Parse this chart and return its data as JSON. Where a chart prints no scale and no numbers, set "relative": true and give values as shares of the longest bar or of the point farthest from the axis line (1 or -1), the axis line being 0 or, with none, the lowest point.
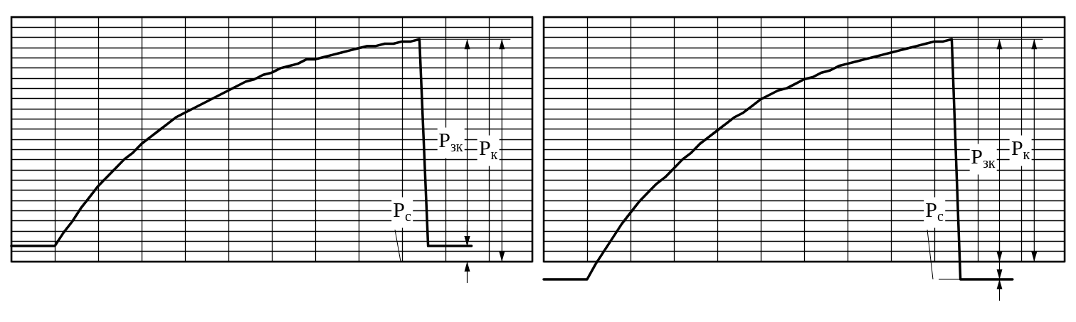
{
  "chart_data": [
    {
      "type": "line",
      "relative": true,
      "grid": true,
      "marker": "none",
      "line_style": "solid",
      "categories": [
        null,
        null,
        null,
        null,
        null,
        null,
        null,
        null,
        null,
        null,
        null,
        null,
        null,
        null,
        null,
        null,
        null,
        null,
        null,
        null,
        null,
        null,
        null,
        null,
        null,
        null,
        null,
        null,
        null,
        null,
        null,
        null,
        null,
        null,
        null,
        null,
        null,
        null,
        null,
        null,
        null,
        null,
        null,
        null,
        null,
        null,
        null,
        null,
        null,
        null,
        null,
        null,
        null,
        null
      ],
      "series": [
        {
          "color": "#000000",
          "values": [
            0.07,
            0.07,
            0.07,
            0.07,
            0.07,
            0.07,
            0.13,
            0.18,
            0.24,
            0.29,
            0.34,
            0.38,
            0.42,
            0.46,
            0.49,
            0.53,
            0.56,
            0.59,
            0.62,
            0.65,
            0.67,
            0.69,
            0.71,
            0.73,
            0.75,
            0.77,
            0.79,
            0.81,
            0.82,
            0.84,
            0.85,
            0.87,
            0.88,
            0.89,
            0.91,
            0.91,
            0.92,
            0.93,
            0.94,
            0.95,
            0.96,
            0.97,
            0.97,
            0.98,
            0.98,
            0.99,
            0.99,
            1,
            0.07,
            0.07,
            0.07,
            0.07,
            0.07,
            0.07
          ]
        }
      ],
      "annotations": [
        "P$_{зк}$",
        "P$_{к}$",
        "P$_{с}$"
      ]
    },
    {
      "type": "line",
      "relative": true,
      "grid": true,
      "marker": "none",
      "line_style": "solid",
      "categories": [
        null,
        null,
        null,
        null,
        null,
        null,
        null,
        null,
        null,
        null,
        null,
        null,
        null,
        null,
        null,
        null,
        null,
        null,
        null,
        null,
        null,
        null,
        null,
        null,
        null,
        null,
        null,
        null,
        null,
        null,
        null,
        null,
        null,
        null,
        null,
        null,
        null,
        null,
        null,
        null,
        null,
        null,
        null,
        null,
        null,
        null,
        null,
        null,
        null,
        null,
        null,
        null,
        null,
        null,
        null
      ],
      "series": [
        {
          "color": "#000000",
          "values": [
            -0.08,
            -0.08,
            -0.08,
            -0.08,
            -0.08,
            -0.08,
            -0.01,
            0.05,
            0.11,
            0.17,
            0.22,
            0.27,
            0.31,
            0.35,
            0.38,
            0.42,
            0.46,
            0.49,
            0.53,
            0.56,
            0.59,
            0.62,
            0.65,
            0.67,
            0.7,
            0.73,
            0.75,
            0.77,
            0.78,
            0.8,
            0.82,
            0.83,
            0.85,
            0.86,
            0.88,
            0.89,
            0.9,
            0.91,
            0.92,
            0.93,
            0.94,
            0.95,
            0.96,
            0.97,
            0.98,
            0.99,
            0.99,
            1,
            -0.08,
            -0.08,
            -0.08,
            -0.08,
            -0.08,
            -0.08,
            -0.08
          ]
        }
      ],
      "annotations": [
        "P$_{зк}$",
        "P$_{к}$",
        "P$_{с}$"
      ]
    }
  ]
}
